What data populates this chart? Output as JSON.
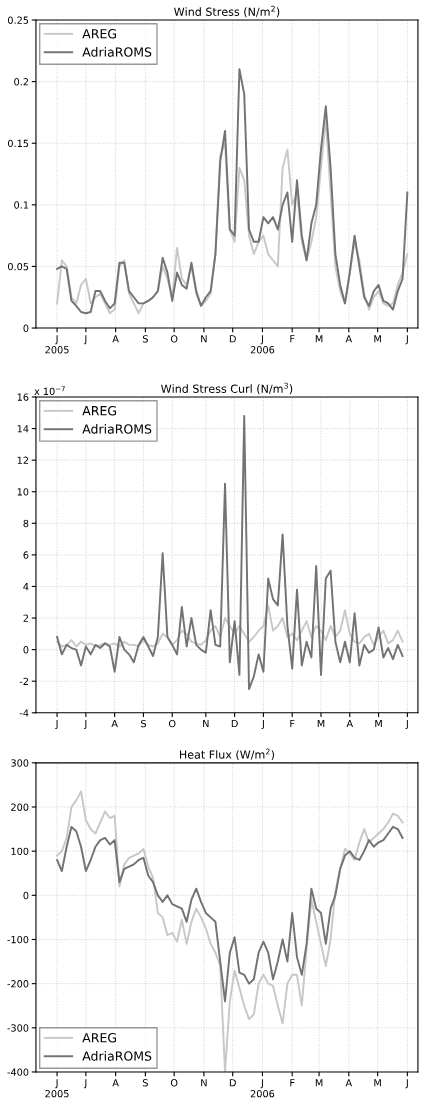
{
  "chart_data": [
    {
      "type": "line",
      "title": "Wind Stress (N/m$^{2}$)",
      "x": [
        "2005-06-01",
        "2005-06-06",
        "2005-06-11",
        "2005-06-16",
        "2005-06-21",
        "2005-06-26",
        "2005-07-01",
        "2005-07-06",
        "2005-07-11",
        "2005-07-16",
        "2005-07-21",
        "2005-07-26",
        "2005-07-31",
        "2005-08-05",
        "2005-08-10",
        "2005-08-15",
        "2005-08-20",
        "2005-08-25",
        "2005-08-30",
        "2005-09-04",
        "2005-09-09",
        "2005-09-14",
        "2005-09-19",
        "2005-09-24",
        "2005-09-29",
        "2005-10-04",
        "2005-10-09",
        "2005-10-14",
        "2005-10-19",
        "2005-10-24",
        "2005-10-29",
        "2005-11-03",
        "2005-11-08",
        "2005-11-13",
        "2005-11-18",
        "2005-11-23",
        "2005-11-28",
        "2005-12-03",
        "2005-12-08",
        "2005-12-13",
        "2005-12-18",
        "2005-12-23",
        "2005-12-28",
        "2006-01-02",
        "2006-01-07",
        "2006-01-12",
        "2006-01-17",
        "2006-01-22",
        "2006-01-27",
        "2006-02-01",
        "2006-02-06",
        "2006-02-11",
        "2006-02-16",
        "2006-02-21",
        "2006-02-26",
        "2006-03-03",
        "2006-03-08",
        "2006-03-13",
        "2006-03-18",
        "2006-03-23",
        "2006-03-28",
        "2006-04-02",
        "2006-04-07",
        "2006-04-12",
        "2006-04-17",
        "2006-04-22",
        "2006-04-27",
        "2006-05-02",
        "2006-05-07",
        "2006-05-12",
        "2006-05-17",
        "2006-05-22",
        "2006-05-27",
        "2006-06-01"
      ],
      "series": [
        {
          "name": "AREG",
          "color": "#c8c8c8",
          "values": [
            0.02,
            0.055,
            0.05,
            0.025,
            0.02,
            0.035,
            0.04,
            0.02,
            0.025,
            0.028,
            0.02,
            0.012,
            0.015,
            0.05,
            0.055,
            0.028,
            0.02,
            0.012,
            0.02,
            0.022,
            0.025,
            0.03,
            0.05,
            0.04,
            0.025,
            0.065,
            0.04,
            0.035,
            0.05,
            0.028,
            0.018,
            0.022,
            0.028,
            0.06,
            0.14,
            0.15,
            0.08,
            0.07,
            0.13,
            0.12,
            0.075,
            0.06,
            0.07,
            0.075,
            0.06,
            0.055,
            0.05,
            0.13,
            0.145,
            0.1,
            0.11,
            0.07,
            0.055,
            0.07,
            0.09,
            0.13,
            0.17,
            0.11,
            0.05,
            0.03,
            0.02,
            0.045,
            0.07,
            0.055,
            0.028,
            0.015,
            0.025,
            0.03,
            0.02,
            0.018,
            0.02,
            0.035,
            0.045,
            0.06
          ]
        },
        {
          "name": "AdriaROMS",
          "color": "#737373",
          "values": [
            0.048,
            0.05,
            0.048,
            0.022,
            0.018,
            0.013,
            0.012,
            0.013,
            0.03,
            0.03,
            0.022,
            0.016,
            0.02,
            0.053,
            0.053,
            0.03,
            0.025,
            0.02,
            0.02,
            0.022,
            0.025,
            0.03,
            0.057,
            0.045,
            0.022,
            0.045,
            0.035,
            0.032,
            0.053,
            0.03,
            0.018,
            0.025,
            0.03,
            0.06,
            0.135,
            0.16,
            0.08,
            0.075,
            0.21,
            0.19,
            0.08,
            0.07,
            0.07,
            0.09,
            0.085,
            0.09,
            0.08,
            0.1,
            0.11,
            0.07,
            0.12,
            0.075,
            0.055,
            0.085,
            0.1,
            0.145,
            0.18,
            0.13,
            0.06,
            0.035,
            0.02,
            0.045,
            0.075,
            0.05,
            0.025,
            0.018,
            0.03,
            0.035,
            0.022,
            0.02,
            0.015,
            0.03,
            0.04,
            0.11
          ]
        }
      ],
      "xlim": [
        "2005-05-10",
        "2006-06-12"
      ],
      "xticks": [
        {
          "value": "2005-06-01",
          "label": "J\n2005"
        },
        {
          "value": "2005-07-01",
          "label": "J"
        },
        {
          "value": "2005-08-01",
          "label": "A"
        },
        {
          "value": "2005-09-01",
          "label": "S"
        },
        {
          "value": "2005-10-01",
          "label": "O"
        },
        {
          "value": "2005-11-01",
          "label": "N"
        },
        {
          "value": "2005-12-01",
          "label": "D"
        },
        {
          "value": "2006-01-01",
          "label": "J\n2006"
        },
        {
          "value": "2006-02-01",
          "label": "F"
        },
        {
          "value": "2006-03-01",
          "label": "M"
        },
        {
          "value": "2006-04-01",
          "label": "A"
        },
        {
          "value": "2006-05-01",
          "label": "M"
        },
        {
          "value": "2006-06-01",
          "label": "J"
        }
      ],
      "ylim": [
        0,
        0.25
      ],
      "yticks": [
        0,
        0.05,
        0.1,
        0.15,
        0.2,
        0.25
      ],
      "grid": true,
      "legend": "top left",
      "line_style": "solid",
      "marker": "none"
    },
    {
      "type": "line",
      "title": "Wind Stress Curl (N/m$^{3}$)",
      "annotations": [
        "x 10$^{−7}$"
      ],
      "categories": [
        "J",
        null,
        null,
        null,
        null,
        null,
        "J",
        null,
        null,
        null,
        null,
        null,
        "A",
        null,
        null,
        null,
        null,
        null,
        "S",
        null,
        null,
        null,
        null,
        null,
        "O",
        null,
        null,
        null,
        null,
        null,
        null,
        "N",
        null,
        null,
        null,
        null,
        null,
        "D",
        null,
        null,
        null,
        null,
        null,
        "J",
        null,
        null,
        null,
        null,
        null,
        "F",
        null,
        null,
        null,
        null,
        null,
        "M",
        null,
        null,
        null,
        null,
        null,
        "A",
        null,
        null,
        null,
        null,
        null,
        "M",
        null,
        null,
        null,
        null,
        null,
        "J"
      ],
      "series": [
        {
          "name": "AREG",
          "color": "#c8c8c8",
          "values": [
            0.5,
            0.2,
            0.3,
            0.6,
            0.2,
            0.5,
            0.3,
            0.4,
            0.2,
            0.3,
            0.4,
            0.3,
            0.4,
            0.2,
            0.5,
            0.3,
            0.3,
            0.2,
            0.6,
            0.3,
            0.2,
            0.4,
            1,
            0.8,
            0.3,
            0.6,
            1.2,
            1,
            0.5,
            0.4,
            0.3,
            0.6,
            1.2,
            1.5,
            0.8,
            2,
            1.5,
            1,
            1.5,
            1,
            0.5,
            0.8,
            1.2,
            1.5,
            2.8,
            1.2,
            1.5,
            2,
            0.8,
            1,
            0.6,
            1.2,
            1.8,
            0.8,
            1.5,
            1.2,
            0.6,
            1.5,
            0.8,
            1.2,
            2.5,
            1,
            0.5,
            0.4,
            0.8,
            1,
            0.3,
            0.8,
            1.2,
            0.4,
            0.6,
            1.2,
            0.5,
            null
          ]
        },
        {
          "name": "AdriaROMS",
          "color": "#737373",
          "values": [
            0.8,
            -0.3,
            0.3,
            0.1,
            0,
            -1,
            0.2,
            -0.3,
            0.3,
            0.1,
            0.4,
            0.2,
            -1.4,
            0.8,
            0,
            -0.3,
            -0.8,
            0.3,
            0.8,
            0.2,
            -0.4,
            0.8,
            6.1,
            0.8,
            0.3,
            -0.3,
            2.7,
            0.2,
            2,
            0.3,
            0,
            -0.2,
            2.5,
            0.3,
            0.2,
            10.5,
            -0.8,
            1.8,
            -1.6,
            14.8,
            -2.5,
            -1.7,
            -0.3,
            -1.4,
            4.5,
            3.2,
            2.8,
            7.3,
            1.5,
            -1.2,
            3.8,
            -1,
            0.5,
            -0.5,
            5.3,
            -1.6,
            4.5,
            5,
            0.5,
            -0.8,
            0.5,
            -0.8,
            2.3,
            -1,
            0.3,
            -0.2,
            0,
            1.4,
            -0.5,
            0.1,
            -0.6,
            0.3,
            -0.4,
            null
          ]
        }
      ],
      "ylim": [
        -4,
        16
      ],
      "yticks": [
        -4,
        -2,
        0,
        2,
        4,
        6,
        8,
        10,
        12,
        14,
        16
      ],
      "grid": true,
      "legend": "top left",
      "line_style": "solid",
      "marker": "none"
    },
    {
      "type": "line",
      "title": "Heat Flux (W/m$^{2}$)",
      "x": [
        "2005-06-01",
        "2005-06-06",
        "2005-06-11",
        "2005-06-16",
        "2005-06-21",
        "2005-06-26",
        "2005-07-01",
        "2005-07-06",
        "2005-07-11",
        "2005-07-16",
        "2005-07-21",
        "2005-07-26",
        "2005-07-31",
        "2005-08-05",
        "2005-08-10",
        "2005-08-15",
        "2005-08-20",
        "2005-08-25",
        "2005-08-30",
        "2005-09-04",
        "2005-09-09",
        "2005-09-14",
        "2005-09-19",
        "2005-09-24",
        "2005-09-29",
        "2005-10-04",
        "2005-10-09",
        "2005-10-14",
        "2005-10-19",
        "2005-10-24",
        "2005-10-29",
        "2005-11-03",
        "2005-11-08",
        "2005-11-13",
        "2005-11-18",
        "2005-11-23",
        "2005-11-28",
        "2005-12-03",
        "2005-12-08",
        "2005-12-13",
        "2005-12-18",
        "2005-12-23",
        "2005-12-28",
        "2006-01-02",
        "2006-01-07",
        "2006-01-12",
        "2006-01-17",
        "2006-01-22",
        "2006-01-27",
        "2006-02-01",
        "2006-02-06",
        "2006-02-11",
        "2006-02-16",
        "2006-02-21",
        "2006-02-26",
        "2006-03-03",
        "2006-03-08",
        "2006-03-13",
        "2006-03-18",
        "2006-03-23",
        "2006-03-28",
        "2006-04-02",
        "2006-04-07",
        "2006-04-12",
        "2006-04-17",
        "2006-04-22",
        "2006-04-27",
        "2006-05-02",
        "2006-05-07",
        "2006-05-12",
        "2006-05-17",
        "2006-05-22",
        "2006-05-27"
      ],
      "series": [
        {
          "name": "AREG",
          "color": "#c8c8c8",
          "values": [
            90,
            100,
            130,
            200,
            215,
            235,
            170,
            150,
            140,
            165,
            190,
            175,
            180,
            20,
            70,
            85,
            90,
            95,
            105,
            65,
            40,
            -40,
            -50,
            -90,
            -85,
            -105,
            -55,
            -110,
            -60,
            -30,
            -50,
            -75,
            -110,
            -130,
            -160,
            -400,
            -240,
            -170,
            -210,
            -250,
            -280,
            -270,
            -200,
            -180,
            -200,
            -205,
            -250,
            -290,
            -200,
            -180,
            -180,
            -250,
            -120,
            -10,
            -60,
            -110,
            -160,
            -100,
            10,
            60,
            105,
            95,
            80,
            120,
            150,
            120,
            130,
            140,
            150,
            165,
            185,
            180,
            165
          ]
        },
        {
          "name": "AdriaROMS",
          "color": "#737373",
          "values": [
            80,
            55,
            110,
            155,
            145,
            110,
            55,
            80,
            110,
            125,
            130,
            115,
            125,
            30,
            60,
            65,
            70,
            80,
            85,
            45,
            30,
            0,
            -15,
            0,
            -20,
            -25,
            -30,
            -60,
            -10,
            15,
            -15,
            -40,
            -50,
            -60,
            -150,
            -240,
            -130,
            -95,
            -175,
            -180,
            -200,
            -190,
            -130,
            -105,
            -130,
            -190,
            -150,
            -100,
            -150,
            -40,
            -140,
            -180,
            -110,
            15,
            -30,
            -40,
            -110,
            -30,
            0,
            60,
            90,
            100,
            85,
            80,
            100,
            125,
            110,
            120,
            125,
            140,
            155,
            150,
            130
          ]
        }
      ],
      "xlim": [
        "2005-05-10",
        "2006-06-12"
      ],
      "xticks": [
        {
          "value": "2005-06-01",
          "label": "J\n2005"
        },
        {
          "value": "2005-07-01",
          "label": "J"
        },
        {
          "value": "2005-08-01",
          "label": "A"
        },
        {
          "value": "2005-09-01",
          "label": "S"
        },
        {
          "value": "2005-10-01",
          "label": "O"
        },
        {
          "value": "2005-11-01",
          "label": "N"
        },
        {
          "value": "2005-12-01",
          "label": "D"
        },
        {
          "value": "2006-01-01",
          "label": "J\n2006"
        },
        {
          "value": "2006-02-01",
          "label": "F"
        },
        {
          "value": "2006-03-01",
          "label": "M"
        },
        {
          "value": "2006-04-01",
          "label": "A"
        },
        {
          "value": "2006-05-01",
          "label": "M"
        },
        {
          "value": "2006-06-01",
          "label": "J"
        }
      ],
      "ylim": [
        -400,
        300
      ],
      "yticks": [
        -400,
        -300,
        -200,
        -100,
        0,
        100,
        200,
        300
      ],
      "grid": true,
      "legend": "bottom left",
      "line_style": "solid",
      "marker": "none"
    }
  ]
}
